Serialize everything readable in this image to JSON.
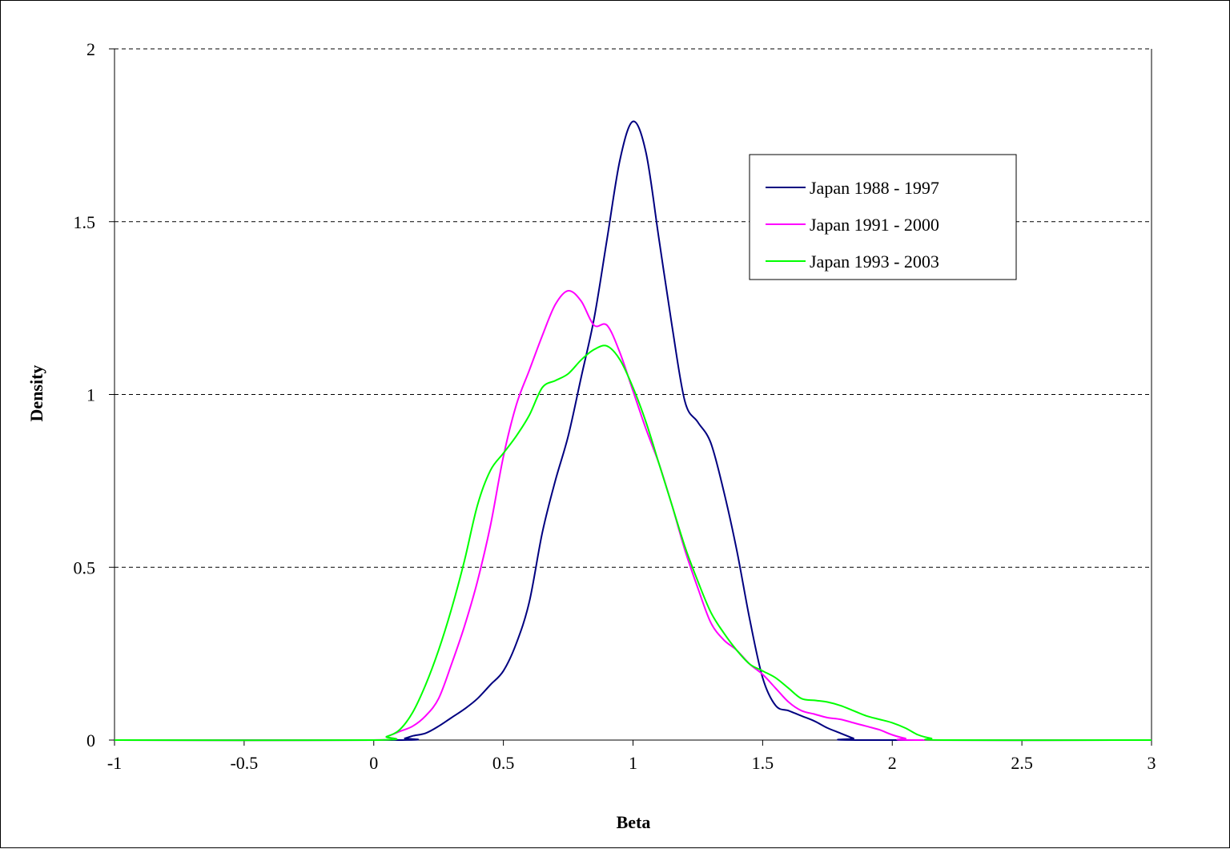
{
  "chart_data": {
    "type": "line",
    "title": "",
    "xlabel": "Beta",
    "ylabel": "Density",
    "xlim": [
      -1,
      3
    ],
    "ylim": [
      0,
      2
    ],
    "x_ticks": [
      -1,
      -0.5,
      0,
      0.5,
      1,
      1.5,
      2,
      2.5,
      3
    ],
    "y_ticks": [
      0,
      0.5,
      1,
      1.5,
      2
    ],
    "grid": "horizontal-dashed",
    "legend_position": "top-right",
    "series": [
      {
        "name": "Japan 1988 - 1997",
        "color": "#000080",
        "points": [
          [
            -1,
            0
          ],
          [
            0.08,
            0
          ],
          [
            0.12,
            0.005
          ],
          [
            0.15,
            0.012
          ],
          [
            0.2,
            0.02
          ],
          [
            0.25,
            0.04
          ],
          [
            0.3,
            0.065
          ],
          [
            0.35,
            0.09
          ],
          [
            0.4,
            0.12
          ],
          [
            0.45,
            0.16
          ],
          [
            0.5,
            0.2
          ],
          [
            0.55,
            0.28
          ],
          [
            0.6,
            0.4
          ],
          [
            0.65,
            0.6
          ],
          [
            0.7,
            0.75
          ],
          [
            0.75,
            0.88
          ],
          [
            0.8,
            1.05
          ],
          [
            0.85,
            1.22
          ],
          [
            0.9,
            1.45
          ],
          [
            0.95,
            1.68
          ],
          [
            1.0,
            1.79
          ],
          [
            1.05,
            1.7
          ],
          [
            1.1,
            1.45
          ],
          [
            1.15,
            1.2
          ],
          [
            1.2,
            0.98
          ],
          [
            1.25,
            0.92
          ],
          [
            1.3,
            0.86
          ],
          [
            1.35,
            0.72
          ],
          [
            1.4,
            0.55
          ],
          [
            1.45,
            0.35
          ],
          [
            1.5,
            0.18
          ],
          [
            1.55,
            0.1
          ],
          [
            1.6,
            0.085
          ],
          [
            1.65,
            0.07
          ],
          [
            1.7,
            0.055
          ],
          [
            1.75,
            0.035
          ],
          [
            1.8,
            0.02
          ],
          [
            1.85,
            0.005
          ],
          [
            1.88,
            0
          ],
          [
            3,
            0
          ]
        ]
      },
      {
        "name": "Japan 1991 - 2000",
        "color": "#ff00ff",
        "points": [
          [
            -1,
            0
          ],
          [
            0,
            0
          ],
          [
            0.05,
            0.01
          ],
          [
            0.1,
            0.025
          ],
          [
            0.15,
            0.04
          ],
          [
            0.2,
            0.07
          ],
          [
            0.25,
            0.12
          ],
          [
            0.3,
            0.22
          ],
          [
            0.35,
            0.33
          ],
          [
            0.4,
            0.46
          ],
          [
            0.45,
            0.62
          ],
          [
            0.5,
            0.82
          ],
          [
            0.55,
            0.97
          ],
          [
            0.6,
            1.07
          ],
          [
            0.65,
            1.17
          ],
          [
            0.7,
            1.26
          ],
          [
            0.75,
            1.3
          ],
          [
            0.8,
            1.27
          ],
          [
            0.85,
            1.2
          ],
          [
            0.9,
            1.2
          ],
          [
            0.95,
            1.12
          ],
          [
            1.0,
            1.01
          ],
          [
            1.05,
            0.9
          ],
          [
            1.1,
            0.8
          ],
          [
            1.15,
            0.68
          ],
          [
            1.2,
            0.55
          ],
          [
            1.25,
            0.44
          ],
          [
            1.3,
            0.34
          ],
          [
            1.35,
            0.29
          ],
          [
            1.4,
            0.26
          ],
          [
            1.45,
            0.22
          ],
          [
            1.5,
            0.19
          ],
          [
            1.55,
            0.15
          ],
          [
            1.6,
            0.11
          ],
          [
            1.65,
            0.085
          ],
          [
            1.7,
            0.075
          ],
          [
            1.75,
            0.065
          ],
          [
            1.8,
            0.06
          ],
          [
            1.85,
            0.05
          ],
          [
            1.9,
            0.04
          ],
          [
            1.95,
            0.03
          ],
          [
            2.0,
            0.015
          ],
          [
            2.05,
            0.005
          ],
          [
            2.1,
            0
          ],
          [
            3,
            0
          ]
        ]
      },
      {
        "name": "Japan 1993 - 2003",
        "color": "#00ff00",
        "points": [
          [
            -1,
            0
          ],
          [
            0,
            0
          ],
          [
            0.05,
            0.01
          ],
          [
            0.1,
            0.03
          ],
          [
            0.15,
            0.08
          ],
          [
            0.2,
            0.16
          ],
          [
            0.25,
            0.26
          ],
          [
            0.3,
            0.38
          ],
          [
            0.35,
            0.52
          ],
          [
            0.4,
            0.68
          ],
          [
            0.45,
            0.78
          ],
          [
            0.5,
            0.83
          ],
          [
            0.55,
            0.88
          ],
          [
            0.6,
            0.94
          ],
          [
            0.65,
            1.02
          ],
          [
            0.7,
            1.04
          ],
          [
            0.75,
            1.06
          ],
          [
            0.8,
            1.1
          ],
          [
            0.85,
            1.13
          ],
          [
            0.9,
            1.14
          ],
          [
            0.95,
            1.1
          ],
          [
            1.0,
            1.02
          ],
          [
            1.05,
            0.92
          ],
          [
            1.1,
            0.8
          ],
          [
            1.15,
            0.68
          ],
          [
            1.2,
            0.56
          ],
          [
            1.25,
            0.46
          ],
          [
            1.3,
            0.37
          ],
          [
            1.35,
            0.31
          ],
          [
            1.4,
            0.26
          ],
          [
            1.45,
            0.22
          ],
          [
            1.5,
            0.2
          ],
          [
            1.55,
            0.18
          ],
          [
            1.6,
            0.15
          ],
          [
            1.65,
            0.12
          ],
          [
            1.7,
            0.115
          ],
          [
            1.75,
            0.11
          ],
          [
            1.8,
            0.1
          ],
          [
            1.85,
            0.085
          ],
          [
            1.9,
            0.07
          ],
          [
            1.95,
            0.06
          ],
          [
            2.0,
            0.05
          ],
          [
            2.05,
            0.035
          ],
          [
            2.1,
            0.015
          ],
          [
            2.15,
            0.005
          ],
          [
            2.2,
            0
          ],
          [
            3,
            0
          ]
        ]
      }
    ]
  }
}
